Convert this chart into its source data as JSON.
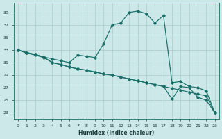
{
  "xlabel": "Humidex (Indice chaleur)",
  "background_color": "#cce8e8",
  "grid_color": "#aacccc",
  "line_color": "#1a6e68",
  "xlim": [
    -0.5,
    23.5
  ],
  "ylim": [
    22.0,
    40.5
  ],
  "ytick_vals": [
    23,
    25,
    27,
    29,
    31,
    33,
    35,
    37,
    39
  ],
  "xtick_vals": [
    0,
    1,
    2,
    3,
    4,
    5,
    6,
    7,
    8,
    9,
    10,
    11,
    12,
    13,
    14,
    15,
    16,
    17,
    18,
    19,
    20,
    21,
    22,
    23
  ],
  "line1_x": [
    0,
    1,
    2,
    3,
    4,
    5,
    6,
    7,
    8,
    9,
    10,
    11,
    12,
    13,
    14,
    15,
    16,
    17,
    18,
    19,
    20,
    21,
    22,
    23
  ],
  "line1_y": [
    33.0,
    32.6,
    32.3,
    31.9,
    31.6,
    31.3,
    31.0,
    32.2,
    32.0,
    31.8,
    34.0,
    37.0,
    37.3,
    39.0,
    39.2,
    38.8,
    37.3,
    38.5,
    27.8,
    28.0,
    27.2,
    27.0,
    26.5,
    23.0
  ],
  "line2_x": [
    0,
    1,
    2,
    3,
    4,
    5,
    6,
    7,
    8,
    9,
    10,
    11,
    12,
    13,
    14,
    15,
    16,
    17,
    18,
    19,
    20,
    21,
    22,
    23
  ],
  "line2_y": [
    33.0,
    32.6,
    32.3,
    31.9,
    31.0,
    30.7,
    30.3,
    30.0,
    29.8,
    29.5,
    29.2,
    29.0,
    28.7,
    28.4,
    28.1,
    27.8,
    27.5,
    27.2,
    26.9,
    26.6,
    26.3,
    26.0,
    25.7,
    23.0
  ],
  "line3_x": [
    0,
    1,
    2,
    3,
    4,
    5,
    6,
    7,
    8,
    9,
    10,
    11,
    12,
    13,
    14,
    15,
    16,
    17,
    18,
    19,
    20,
    21,
    22,
    23
  ],
  "line3_y": [
    33.0,
    32.5,
    32.2,
    31.8,
    31.0,
    30.7,
    30.3,
    30.0,
    29.8,
    29.5,
    29.2,
    29.0,
    28.7,
    28.4,
    28.1,
    27.8,
    27.5,
    27.2,
    25.2,
    27.2,
    27.0,
    25.5,
    25.0,
    23.0
  ]
}
